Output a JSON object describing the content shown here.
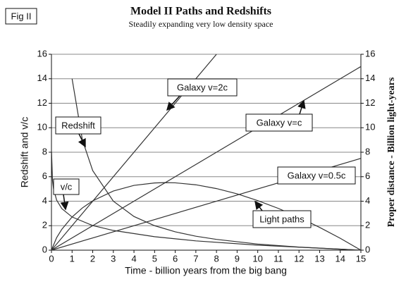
{
  "chart_data": {
    "type": "line",
    "figure_label": "Fig II",
    "title": "Model II  Paths and Redshifts",
    "subtitle": "Steadily expanding very low density space",
    "x_label": "Time - billion years from the big bang",
    "y_label": "Redshift and v/c",
    "y2_label": "Proper distance - Billion light-years",
    "xlim": [
      0,
      15
    ],
    "xticks": [
      0,
      1,
      2,
      3,
      4,
      5,
      6,
      7,
      8,
      9,
      10,
      11,
      12,
      13,
      14,
      15
    ],
    "ylim": [
      0,
      16
    ],
    "yticks": [
      0,
      2,
      4,
      6,
      8,
      10,
      12,
      14,
      16
    ],
    "y2lim": [
      0,
      16
    ],
    "y2ticks": [
      0,
      2,
      4,
      6,
      8,
      10,
      12,
      14,
      16
    ],
    "grid": true,
    "series": [
      {
        "name": "Galaxy v=2c",
        "color": "#333333",
        "axis": "y2",
        "x": [
          0,
          8
        ],
        "values": [
          0,
          16
        ]
      },
      {
        "name": "Galaxy v=c",
        "color": "#333333",
        "axis": "y2",
        "x": [
          0,
          15
        ],
        "values": [
          0,
          15
        ]
      },
      {
        "name": "Galaxy v=0.5c",
        "color": "#333333",
        "axis": "y2",
        "x": [
          0,
          15
        ],
        "values": [
          0,
          7.5
        ]
      },
      {
        "name": "Light paths",
        "color": "#333333",
        "axis": "y2",
        "x": [
          0,
          0.25,
          0.5,
          1,
          1.5,
          2,
          3,
          4,
          5,
          5.5,
          6,
          7,
          8,
          9,
          10,
          11,
          12,
          13,
          14,
          15
        ],
        "values": [
          0,
          1.02,
          1.7,
          2.71,
          3.45,
          4.03,
          4.83,
          5.29,
          5.49,
          5.52,
          5.5,
          5.34,
          5.03,
          4.6,
          4.05,
          3.41,
          2.68,
          1.86,
          0.97,
          0
        ]
      },
      {
        "name": "Redshift",
        "color": "#333333",
        "x": [
          1,
          1.5,
          2,
          3,
          4,
          5,
          6,
          7,
          8,
          10,
          12,
          15
        ],
        "values": [
          14,
          9,
          6.5,
          4,
          2.75,
          2,
          1.5,
          1.14,
          0.88,
          0.5,
          0.25,
          0
        ]
      },
      {
        "name": "v/c",
        "color": "#333333",
        "x": [
          0.005,
          0.05,
          0.1,
          0.25,
          0.5,
          1,
          2,
          3,
          5,
          7,
          10,
          15
        ],
        "values": [
          8,
          5.7,
          5.01,
          4.09,
          3.4,
          2.71,
          2.01,
          1.61,
          1.1,
          0.76,
          0.41,
          0
        ]
      }
    ]
  }
}
